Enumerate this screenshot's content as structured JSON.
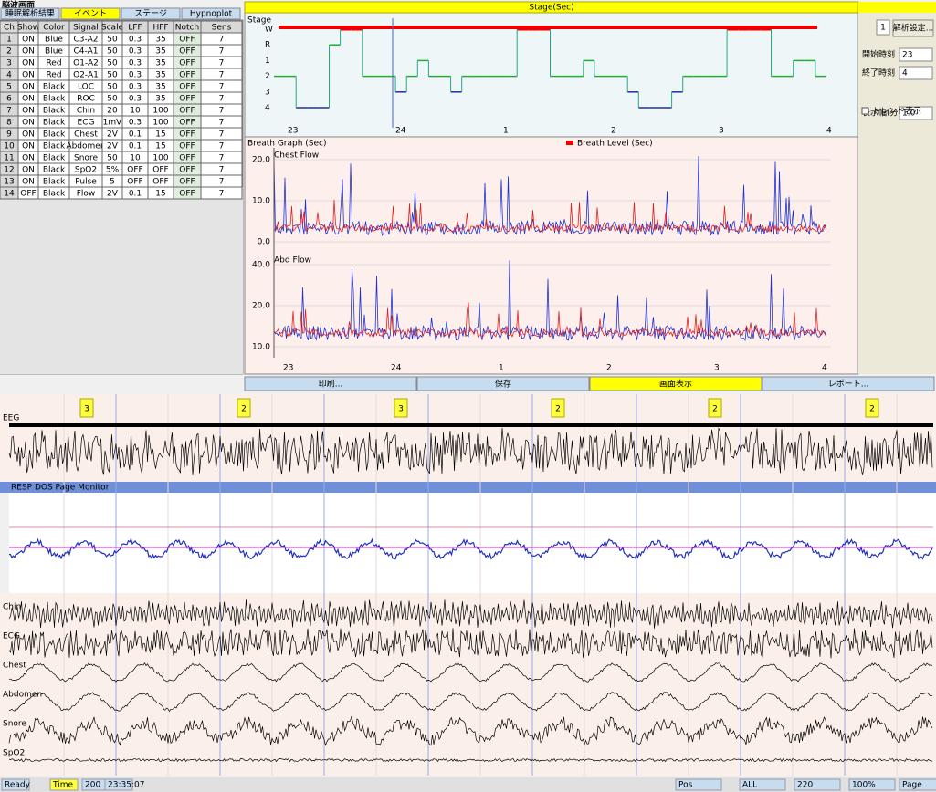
{
  "window_title": "脳波画面",
  "tabs": [
    "睡眠解析結果",
    "イベント",
    "ステージ",
    "Hypnoplot"
  ],
  "table": {
    "columns": [
      "Ch",
      "Show",
      "Color",
      "Signal",
      "Scale",
      "LFF",
      "HFF",
      "Notch",
      "Sens"
    ],
    "rows": [
      [
        "1",
        "ON",
        "Blue",
        "C3-A2",
        "50",
        "0.3",
        "35",
        "OFF",
        "7"
      ],
      [
        "2",
        "ON",
        "Blue",
        "C4-A1",
        "50",
        "0.3",
        "35",
        "OFF",
        "7"
      ],
      [
        "3",
        "ON",
        "Red",
        "O1-A2",
        "50",
        "0.3",
        "35",
        "OFF",
        "7"
      ],
      [
        "4",
        "ON",
        "Red",
        "O2-A1",
        "50",
        "0.3",
        "35",
        "OFF",
        "7"
      ],
      [
        "5",
        "ON",
        "Black",
        "LOC",
        "50",
        "0.3",
        "35",
        "OFF",
        "7"
      ],
      [
        "6",
        "ON",
        "Black",
        "ROC",
        "50",
        "0.3",
        "35",
        "OFF",
        "7"
      ],
      [
        "7",
        "ON",
        "Black",
        "Chin",
        "20",
        "10",
        "100",
        "OFF",
        "7"
      ],
      [
        "8",
        "ON",
        "Black",
        "ECG",
        "1mV",
        "0.3",
        "100",
        "OFF",
        "7"
      ],
      [
        "9",
        "ON",
        "Black",
        "Chest",
        "2V",
        "0.1",
        "15",
        "OFF",
        "7"
      ],
      [
        "10",
        "ON",
        "Black",
        "Abdomen",
        "2V",
        "0.1",
        "15",
        "OFF",
        "7"
      ],
      [
        "11",
        "ON",
        "Black",
        "Snore",
        "50",
        "10",
        "100",
        "OFF",
        "7"
      ],
      [
        "12",
        "ON",
        "Black",
        "SpO2",
        "5%",
        "OFF",
        "OFF",
        "OFF",
        "7"
      ],
      [
        "13",
        "ON",
        "Black",
        "Pulse",
        "5",
        "OFF",
        "OFF",
        "OFF",
        "7"
      ],
      [
        "14",
        "OFF",
        "Black",
        "Flow",
        "2V",
        "0.1",
        "15",
        "OFF",
        "7"
      ]
    ]
  },
  "top_bar": "Stage(Sec)",
  "hypnogram": {
    "label": "Stage",
    "stage_labels": [
      "W",
      "R",
      "1",
      "2",
      "3",
      "4"
    ],
    "stages": [
      3,
      3,
      5,
      5,
      5,
      1,
      0,
      0,
      3,
      3,
      3,
      4,
      3,
      2,
      3,
      3,
      4,
      3,
      3,
      3,
      3,
      3,
      0,
      0,
      0,
      3,
      3,
      3,
      2,
      3,
      3,
      3,
      4,
      5,
      5,
      5,
      4,
      3,
      3,
      3,
      3,
      0,
      0,
      0,
      0,
      3,
      3,
      2,
      2,
      3
    ],
    "hours": [
      "23",
      "24",
      "1",
      "2",
      "3",
      "4"
    ]
  },
  "breath": {
    "title": "Breath Graph (Sec)",
    "legend": "Breath Level (Sec)",
    "panels": [
      {
        "name": "Chest Flow",
        "yticks": [
          "20.0",
          "10.0",
          "0.0"
        ]
      },
      {
        "name": "Abd Flow",
        "yticks": [
          "40.0",
          "20.0",
          "10.0"
        ]
      }
    ],
    "hours": [
      "23",
      "24",
      "1",
      "2",
      "3",
      "4"
    ]
  },
  "buttons": [
    "印刷...",
    "保存",
    "画面表示",
    "レポート..."
  ],
  "side": {
    "spin": "1",
    "button": "解析設定...",
    "fields": [
      {
        "label": "開始時刻",
        "value": "23"
      },
      {
        "label": "終了時刻",
        "value": "4"
      },
      {
        "label": "表示幅(分)",
        "value": "1.0"
      }
    ],
    "checkbox": "トレンド表示"
  },
  "eeg": {
    "name": "EEG",
    "markers": [
      "3",
      "2",
      "3",
      "2",
      "2",
      "2"
    ]
  },
  "monitor_title": "RESP DOS Page Monitor",
  "channels": [
    "Chin",
    "ECG",
    "Chest",
    "Abdomen",
    "Snore",
    "SpO2"
  ],
  "status": [
    "Ready",
    "Time",
    "200",
    "23:35:07",
    "Pos",
    "ALL",
    "220",
    "100%",
    "Page"
  ]
}
